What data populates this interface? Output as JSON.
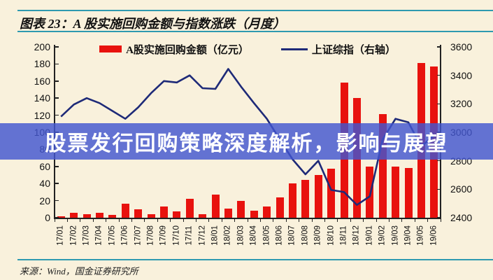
{
  "figure": {
    "title": "图表 23：A 股实施回购金额与指数涨跌（月度）",
    "source": "来源：Wind，国金证券研究所"
  },
  "watermark": {
    "text": "股票发行回购策略深度解析，影响与展望"
  },
  "legend": {
    "bar_label": "A股实施回购金额（亿元）",
    "line_label": "上证综指（右轴）"
  },
  "colors": {
    "background": "#f9f1dc",
    "accent_rule": "#2e9ab0",
    "bar": "#e8120e",
    "line": "#1e2a78",
    "watermark_band": "rgba(66,86,208,0.82)",
    "axis": "#222222"
  },
  "chart_data": {
    "type": "bar",
    "subtype": "combo-bar-line",
    "grid": false,
    "legend_position": "top",
    "categories": [
      "17/01",
      "17/02",
      "17/03",
      "17/04",
      "17/05",
      "17/06",
      "17/07",
      "17/08",
      "17/09",
      "17/10",
      "17/11",
      "17/12",
      "18/01",
      "18/02",
      "18/03",
      "18/04",
      "18/05",
      "18/06",
      "18/07",
      "18/08",
      "18/09",
      "18/10",
      "18/11",
      "18/12",
      "19/01",
      "19/02",
      "19/03",
      "19/04",
      "19/05",
      "19/06"
    ],
    "series": [
      {
        "name": "A股实施回购金额（亿元）",
        "type": "bar",
        "axis": "left",
        "values": [
          2,
          6,
          4,
          5.5,
          3.5,
          16,
          9.5,
          4,
          13,
          7,
          22,
          4,
          27,
          11,
          20,
          8,
          13,
          24,
          40,
          44,
          50,
          57,
          158,
          140,
          60,
          121,
          60,
          58,
          181,
          177
        ]
      },
      {
        "name": "上证综指（右轴）",
        "type": "line",
        "axis": "right",
        "values": [
          3110,
          3195,
          3240,
          3205,
          3150,
          3095,
          3175,
          3275,
          3360,
          3350,
          3400,
          3310,
          3305,
          3445,
          3320,
          3205,
          3095,
          2950,
          2810,
          2705,
          2800,
          2595,
          2580,
          2490,
          2550,
          2950,
          3095,
          3070,
          2900,
          2980
        ]
      }
    ],
    "left_axis": {
      "min": 0,
      "max": 200,
      "step": 20,
      "ticks": [
        0,
        20,
        40,
        60,
        80,
        100,
        120,
        140,
        160,
        180,
        200
      ]
    },
    "right_axis": {
      "min": 2400,
      "max": 3600,
      "step": 200,
      "ticks": [
        2400,
        2600,
        2800,
        3000,
        3200,
        3400,
        3600
      ]
    }
  }
}
